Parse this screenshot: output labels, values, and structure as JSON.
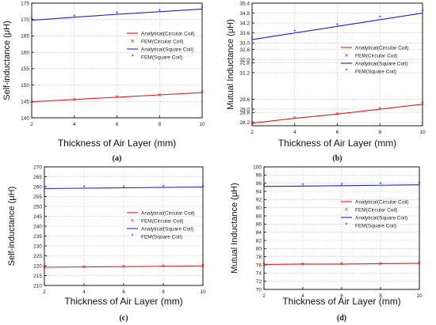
{
  "chart_data": [
    {
      "type": "line",
      "caption": "(a)",
      "xlabel": "Thickness of Air Layer (mm)",
      "ylabel": "Self-inductance (μH)",
      "x": [
        2,
        4,
        6,
        8,
        10
      ],
      "xlim": [
        2,
        10
      ],
      "xticks": [
        2,
        4,
        6,
        8,
        10
      ],
      "ylim": [
        140,
        175
      ],
      "yticks": [
        140,
        145,
        150,
        155,
        160,
        165,
        170,
        175
      ],
      "grid": true,
      "legend_position": "right-middle",
      "series": [
        {
          "name": "Analytical(Circular Coil)",
          "kind": "line",
          "color": "#e31a1c",
          "values": [
            144.9,
            145.6,
            146.3,
            147.0,
            147.7
          ]
        },
        {
          "name": "FEM(Circular Coil)",
          "kind": "marker",
          "marker": "×",
          "color": "#e31a1c",
          "values": [
            145.0,
            145.5,
            146.4,
            147.0,
            147.8
          ]
        },
        {
          "name": "Analytical(Square Coil)",
          "kind": "line",
          "color": "#1f1fd8",
          "values": [
            169.8,
            170.7,
            171.6,
            172.4,
            173.2
          ]
        },
        {
          "name": "FEM(Square Coil)",
          "kind": "marker",
          "marker": "*",
          "color": "#1f1fd8",
          "values": [
            170.0,
            170.8,
            171.7,
            172.5,
            173.4
          ]
        }
      ]
    },
    {
      "type": "line",
      "caption": "(b)",
      "xlabel": "Thickness of Air Layer (mm)",
      "ylabel": "Mutual Inductance (μH)",
      "x": [
        2,
        4,
        6,
        8,
        10
      ],
      "xlim": [
        2,
        10
      ],
      "xticks": [
        2,
        4,
        6,
        8,
        10
      ],
      "ylim": [
        28.0,
        35.4
      ],
      "yticks": [
        28.2,
        28.8,
        29.0,
        29.6,
        31.2,
        31.8,
        32.0,
        32.6,
        33.0,
        33.6,
        34.2,
        34.8,
        35.4
      ],
      "ytick_labels": [
        "28.2",
        "28.8",
        "29.0",
        "29.6",
        "31.2",
        "31.8",
        "32.0",
        "32.6",
        "33.0",
        "33.6",
        "34.2",
        "34.8",
        "35.4"
      ],
      "grid": true,
      "legend_position": "right-middle",
      "series": [
        {
          "name": "Analytical(Circular Coil)",
          "kind": "line",
          "color": "#e31a1c",
          "values": [
            28.15,
            28.45,
            28.7,
            29.0,
            29.3
          ]
        },
        {
          "name": "FEM(Circular Coil)",
          "kind": "marker",
          "marker": "×",
          "color": "#e31a1c",
          "values": [
            28.17,
            28.47,
            28.72,
            29.05,
            29.33
          ]
        },
        {
          "name": "Analytical(Square Coil)",
          "kind": "line",
          "color": "#1f1fd8",
          "values": [
            33.2,
            33.6,
            34.0,
            34.4,
            34.8
          ]
        },
        {
          "name": "FEM(Square Coil)",
          "kind": "marker",
          "marker": "*",
          "color": "#1f1fd8",
          "values": [
            33.25,
            33.65,
            34.05,
            34.5,
            34.9
          ]
        }
      ]
    },
    {
      "type": "line",
      "caption": "(c)",
      "xlabel": "Thickness of Air Layer (mm)",
      "ylabel": "Self-inductance (μH)",
      "x": [
        2,
        4,
        6,
        8,
        10
      ],
      "xlim": [
        2,
        10
      ],
      "xticks": [
        2,
        4,
        6,
        8,
        10
      ],
      "ylim": [
        210,
        270
      ],
      "yticks": [
        210,
        215,
        220,
        225,
        230,
        235,
        240,
        245,
        250,
        255,
        260,
        265,
        270
      ],
      "grid": true,
      "legend_position": "right-middle",
      "series": [
        {
          "name": "Analytical(Circular Coil)",
          "kind": "line",
          "color": "#e31a1c",
          "values": [
            219.2,
            219.4,
            219.5,
            219.7,
            219.9
          ]
        },
        {
          "name": "FEM(Circular Coil)",
          "kind": "marker",
          "marker": "×",
          "color": "#e31a1c",
          "values": [
            219.3,
            219.4,
            219.6,
            219.8,
            220.0
          ]
        },
        {
          "name": "Analytical(Square Coil)",
          "kind": "line",
          "color": "#1f1fd8",
          "values": [
            259.0,
            259.2,
            259.4,
            259.6,
            259.8
          ]
        },
        {
          "name": "FEM(Square Coil)",
          "kind": "marker",
          "marker": "*",
          "color": "#1f1fd8",
          "values": [
            259.2,
            259.4,
            259.5,
            259.7,
            259.9
          ]
        }
      ]
    },
    {
      "type": "line",
      "caption": "(d)",
      "xlabel": "Thickness of Air Layer (mm)",
      "ylabel": "Mutual Inductance (μH)",
      "x": [
        2,
        4,
        6,
        8,
        10
      ],
      "xlim": [
        2,
        10
      ],
      "xticks": [
        2,
        4,
        6,
        8,
        10
      ],
      "ylim": [
        70,
        100
      ],
      "yticks": [
        70,
        72,
        74,
        76,
        78,
        80,
        82,
        84,
        86,
        88,
        90,
        92,
        94,
        96,
        98,
        100
      ],
      "ytick_labels": [
        "70",
        "72",
        "74",
        "76",
        "78",
        "80",
        "82",
        "84",
        "86",
        "88",
        "90",
        "92",
        "94",
        "96",
        "98",
        "100"
      ],
      "grid": true,
      "legend_position": "right-upper",
      "series": [
        {
          "name": "Analytical(Circular Coil)",
          "kind": "line",
          "color": "#e31a1c",
          "values": [
            76.1,
            76.2,
            76.2,
            76.3,
            76.4
          ]
        },
        {
          "name": "FEM(Circular Coil)",
          "kind": "marker",
          "marker": "×",
          "color": "#e31a1c",
          "values": [
            76.1,
            76.2,
            76.3,
            76.3,
            76.4
          ]
        },
        {
          "name": "Analytical(Square Coil)",
          "kind": "line",
          "color": "#1f1fd8",
          "values": [
            95.2,
            95.3,
            95.4,
            95.5,
            95.6
          ]
        },
        {
          "name": "FEM(Square Coil)",
          "kind": "marker",
          "marker": "*",
          "color": "#1f1fd8",
          "values": [
            95.3,
            95.4,
            95.5,
            95.6,
            95.8
          ]
        }
      ]
    }
  ]
}
